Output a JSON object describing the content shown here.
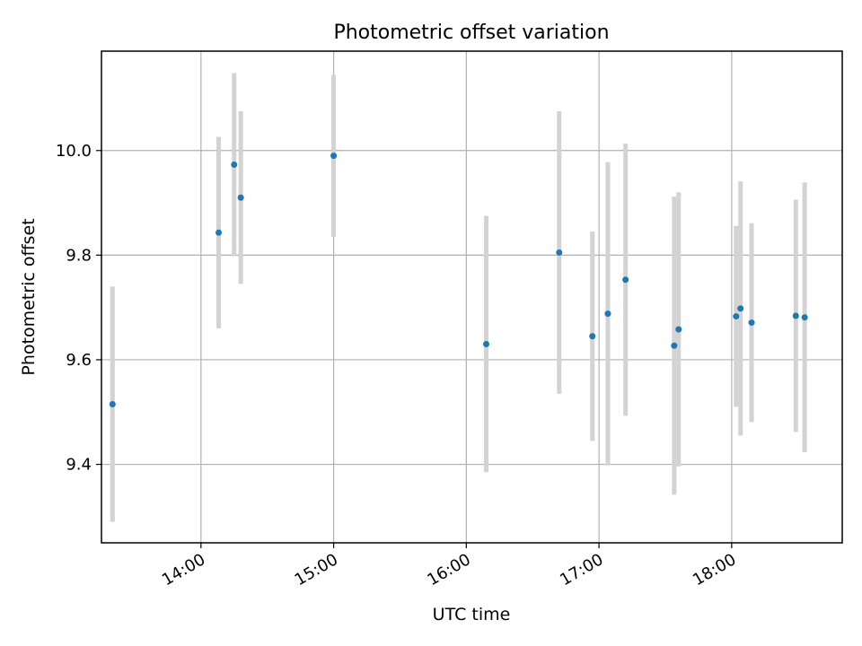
{
  "chart_data": {
    "type": "scatter",
    "title": "Photometric offset variation",
    "xlabel": "UTC time",
    "ylabel": "Photometric offset",
    "x_axis": {
      "kind": "time",
      "range": [
        "13:15",
        "18:50"
      ],
      "ticks": [
        "14:00",
        "15:00",
        "16:00",
        "17:00",
        "18:00"
      ]
    },
    "y_axis": {
      "range": [
        9.25,
        10.19
      ],
      "ticks": [
        9.4,
        9.6,
        9.8,
        10.0
      ],
      "tick_labels": [
        "9.4",
        "9.6",
        "9.8",
        "10.0"
      ]
    },
    "grid": true,
    "series": [
      {
        "marker_color": "#1f77b4",
        "errorbar_color": "#d3d3d3",
        "points": [
          {
            "x": "13:20",
            "y": 9.515,
            "err": 0.225
          },
          {
            "x": "14:08",
            "y": 9.843,
            "err": 0.183
          },
          {
            "x": "14:15",
            "y": 9.973,
            "err": 0.175
          },
          {
            "x": "14:18",
            "y": 9.91,
            "err": 0.165
          },
          {
            "x": "15:00",
            "y": 9.99,
            "err": 0.155
          },
          {
            "x": "16:09",
            "y": 9.63,
            "err": 0.245
          },
          {
            "x": "16:42",
            "y": 9.805,
            "err": 0.27
          },
          {
            "x": "16:57",
            "y": 9.645,
            "err": 0.2
          },
          {
            "x": "17:04",
            "y": 9.688,
            "err": 0.29
          },
          {
            "x": "17:12",
            "y": 9.753,
            "err": 0.26
          },
          {
            "x": "17:34",
            "y": 9.627,
            "err": 0.285
          },
          {
            "x": "17:36",
            "y": 9.658,
            "err": 0.262
          },
          {
            "x": "18:02",
            "y": 9.683,
            "err": 0.173
          },
          {
            "x": "18:04",
            "y": 9.698,
            "err": 0.243
          },
          {
            "x": "18:09",
            "y": 9.671,
            "err": 0.19
          },
          {
            "x": "18:29",
            "y": 9.684,
            "err": 0.222
          },
          {
            "x": "18:33",
            "y": 9.681,
            "err": 0.258
          }
        ]
      }
    ]
  }
}
